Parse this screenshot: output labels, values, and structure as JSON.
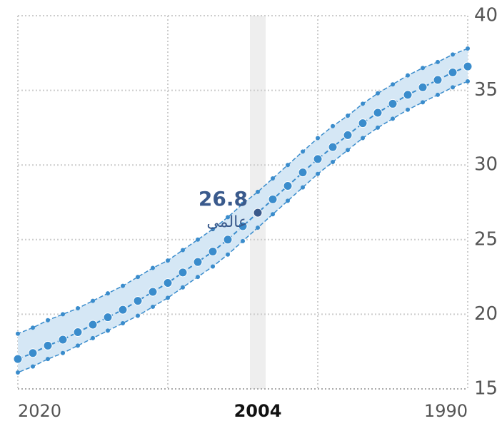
{
  "chart_data": {
    "type": "line",
    "x": [
      1990,
      1991,
      1992,
      1993,
      1994,
      1995,
      1996,
      1997,
      1998,
      1999,
      2000,
      2001,
      2002,
      2003,
      2004,
      2005,
      2006,
      2007,
      2008,
      2009,
      2010,
      2011,
      2012,
      2013,
      2014,
      2015,
      2016,
      2017,
      2018,
      2019,
      2020
    ],
    "series": [
      {
        "name": "عالمي",
        "color": "#3a8ccc",
        "values": [
          36.6,
          36.2,
          35.7,
          35.2,
          34.7,
          34.1,
          33.5,
          32.8,
          32.0,
          31.2,
          30.4,
          29.5,
          28.6,
          27.7,
          26.8,
          25.9,
          25.0,
          24.2,
          23.5,
          22.8,
          22.1,
          21.5,
          20.9,
          20.3,
          19.8,
          19.3,
          18.8,
          18.3,
          17.9,
          17.4,
          17.0
        ]
      }
    ],
    "band": {
      "color": "#d5e7f5",
      "line_color": "#3a8ccc",
      "upper": [
        37.8,
        37.4,
        36.9,
        36.5,
        36.0,
        35.4,
        34.8,
        34.1,
        33.3,
        32.6,
        31.8,
        30.9,
        30.0,
        29.1,
        28.2,
        27.4,
        26.5,
        25.7,
        25.0,
        24.3,
        23.6,
        23.1,
        22.5,
        21.9,
        21.4,
        20.9,
        20.4,
        20.0,
        19.6,
        19.1,
        18.7
      ],
      "lower": [
        35.6,
        35.2,
        34.7,
        34.2,
        33.7,
        33.1,
        32.5,
        31.8,
        31.0,
        30.2,
        29.4,
        28.5,
        27.6,
        26.7,
        25.8,
        24.9,
        24.0,
        23.2,
        22.5,
        21.8,
        21.1,
        20.5,
        19.9,
        19.4,
        18.9,
        18.4,
        17.9,
        17.4,
        17.0,
        16.5,
        16.1
      ]
    },
    "highlight": {
      "x": 2004,
      "value_label": "26.8",
      "color": "#3a5a8c"
    },
    "xlim": [
      2020,
      1990
    ],
    "xgrid": [
      2020,
      2010,
      2000,
      1990
    ],
    "xticks": [
      2020,
      2004,
      1990
    ],
    "ylim": [
      15,
      40
    ],
    "yticks": [
      15,
      20,
      25,
      30,
      35,
      40
    ],
    "grid": true
  }
}
